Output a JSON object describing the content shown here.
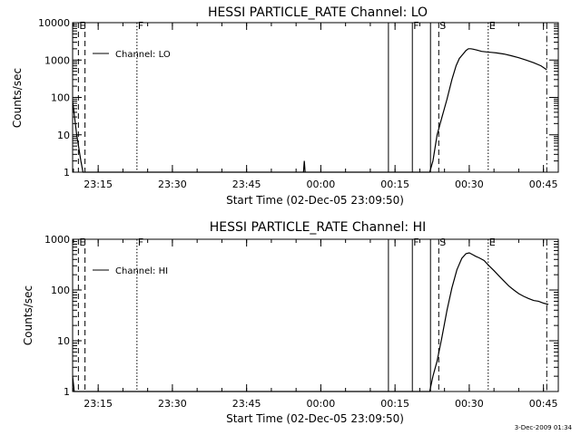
{
  "footer": {
    "timestamp": "3-Dec-2009 01:34"
  },
  "chart_data": [
    {
      "type": "line",
      "title": "HESSI PARTICLE_RATE Channel: LO",
      "xlabel": "Start Time (02-Dec-05 23:09:50)",
      "ylabel": "Counts/sec",
      "yscale": "log",
      "ylim": [
        1,
        10000
      ],
      "xlim": [
        "23:09:50",
        "00:48:00"
      ],
      "yticks": [
        "1",
        "10",
        "100",
        "1000",
        "10000"
      ],
      "xticks": [
        "23:15",
        "23:30",
        "23:45",
        "00:00",
        "00:15",
        "00:30",
        "00:45"
      ],
      "legend": {
        "label": "Channel: LO",
        "placement": "upper-left"
      },
      "grid": false,
      "series": [
        {
          "name": "Channel: LO",
          "x": [
            "23:09:50",
            "23:10:40",
            "23:11:30",
            "23:11:55",
            "00:22:00",
            "00:22:40",
            "00:23:30",
            "00:24:30",
            "00:25:30",
            "00:26:30",
            "00:27:20",
            "00:28:00",
            "00:28:40",
            "00:29:20",
            "00:29:50",
            "00:30:20",
            "00:30:50",
            "00:31:30",
            "00:32:30",
            "00:33:30",
            "00:34:30",
            "00:35:30",
            "00:37:00",
            "00:38:30",
            "00:40:00",
            "00:41:30",
            "00:43:00",
            "00:44:30",
            "00:45:40"
          ],
          "y": [
            80,
            10,
            2,
            1,
            1,
            2,
            10,
            30,
            90,
            300,
            700,
            1100,
            1400,
            1800,
            2000,
            2000,
            1950,
            1850,
            1700,
            1650,
            1600,
            1550,
            1450,
            1300,
            1150,
            1000,
            850,
            700,
            550
          ]
        },
        {
          "name": "spike",
          "x": [
            "23:56:30",
            "23:56:40",
            "23:56:50"
          ],
          "y": [
            1,
            2,
            1
          ]
        }
      ],
      "markers": [
        {
          "x": "23:11:00",
          "label": "E",
          "style": "dashed"
        },
        {
          "x": "23:12:20",
          "label": "",
          "style": "dashed"
        },
        {
          "x": "23:22:50",
          "label": "F",
          "style": "dotted"
        },
        {
          "x": "00:13:40",
          "label": "",
          "style": "solid"
        },
        {
          "x": "00:18:30",
          "label": "F",
          "style": "solid"
        },
        {
          "x": "00:22:10",
          "label": "",
          "style": "solid"
        },
        {
          "x": "00:23:50",
          "label": "S",
          "style": "dashed"
        },
        {
          "x": "00:33:50",
          "label": "E",
          "style": "dotted"
        },
        {
          "x": "00:45:40",
          "label": "",
          "style": "dashdot"
        }
      ]
    },
    {
      "type": "line",
      "title": "HESSI PARTICLE_RATE Channel: HI",
      "xlabel": "Start Time (02-Dec-05 23:09:50)",
      "ylabel": "Counts/sec",
      "yscale": "log",
      "ylim": [
        1,
        1000
      ],
      "xlim": [
        "23:09:50",
        "00:48:00"
      ],
      "yticks": [
        "1",
        "10",
        "100",
        "1000"
      ],
      "xticks": [
        "23:15",
        "23:30",
        "23:45",
        "00:00",
        "00:15",
        "00:30",
        "00:45"
      ],
      "legend": {
        "label": "Channel: HI",
        "placement": "upper-left"
      },
      "grid": false,
      "series": [
        {
          "name": "Channel: HI",
          "x": [
            "23:09:50",
            "23:10:10",
            "23:10:30",
            "00:22:00",
            "00:22:40",
            "00:23:30",
            "00:24:30",
            "00:25:30",
            "00:26:30",
            "00:27:30",
            "00:28:30",
            "00:29:20",
            "00:30:00",
            "00:30:40",
            "00:31:20",
            "00:32:00",
            "00:33:00",
            "00:34:00",
            "00:35:00",
            "00:36:00",
            "00:37:00",
            "00:38:00",
            "00:39:00",
            "00:40:00",
            "00:41:00",
            "00:42:00",
            "00:43:00",
            "00:44:00",
            "00:45:00",
            "00:46:00"
          ],
          "y": [
            2,
            1,
            1,
            1,
            2,
            4,
            12,
            40,
            110,
            250,
            420,
            520,
            540,
            500,
            460,
            430,
            380,
            300,
            240,
            190,
            150,
            120,
            100,
            85,
            75,
            68,
            62,
            60,
            55,
            52
          ]
        }
      ],
      "markers": [
        {
          "x": "23:11:00",
          "label": "E",
          "style": "dashed"
        },
        {
          "x": "23:12:20",
          "label": "",
          "style": "dashed"
        },
        {
          "x": "23:22:50",
          "label": "F",
          "style": "dotted"
        },
        {
          "x": "00:13:40",
          "label": "",
          "style": "solid"
        },
        {
          "x": "00:18:30",
          "label": "F",
          "style": "solid"
        },
        {
          "x": "00:22:10",
          "label": "",
          "style": "solid"
        },
        {
          "x": "00:23:50",
          "label": "S",
          "style": "dashed"
        },
        {
          "x": "00:33:50",
          "label": "E",
          "style": "dotted"
        },
        {
          "x": "00:45:40",
          "label": "",
          "style": "dashdot"
        }
      ]
    }
  ]
}
